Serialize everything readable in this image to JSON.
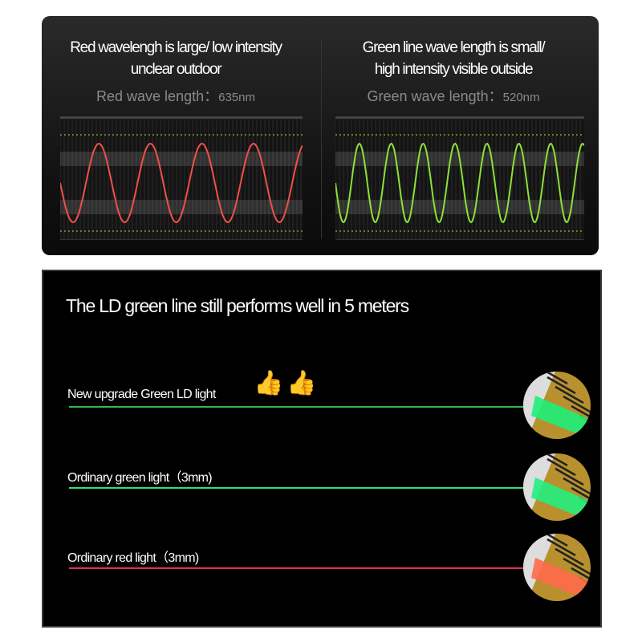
{
  "top": {
    "left": {
      "headline_1": "Red wavelengh is large/ low intensity",
      "headline_2": "unclear outdoor",
      "sub_label": "Red wave length：",
      "sub_value": "635nm",
      "wave_color": "#f0504a",
      "cycles": 4.7
    },
    "right": {
      "headline_1": "Green line wave length is small/",
      "headline_2": "high intensity visible outside",
      "sub_label": "Green wave length：",
      "sub_value": "520nm",
      "wave_color": "#8ee03a",
      "cycles": 7.8
    }
  },
  "bottom": {
    "title": "The LD green line still performs well in 5 meters",
    "rows": [
      {
        "label": "New upgrade Green LD light",
        "line_color": "#3ab54a",
        "beam_color": "#1ef07a",
        "icons": [
          "thumbs-up-icon",
          "thumbs-up-icon"
        ]
      },
      {
        "label": "Ordinary green light（3mm)",
        "line_color": "#2fe07a",
        "beam_color": "#22f080"
      },
      {
        "label": "Ordinary red light（3mm)",
        "line_color": "#e0305a",
        "beam_color": "#ff6a4a"
      }
    ]
  }
}
